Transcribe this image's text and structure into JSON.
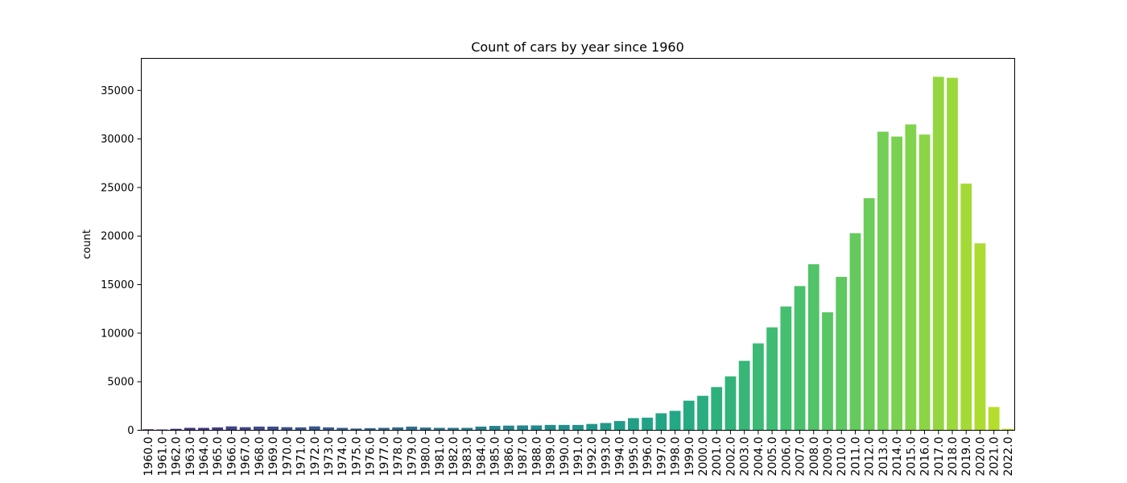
{
  "chart_data": {
    "type": "bar",
    "title": "Count of cars by year since 1960",
    "xlabel": "",
    "ylabel": "count",
    "ylim": [
      0,
      38300
    ],
    "yticks": [
      0,
      5000,
      10000,
      15000,
      20000,
      25000,
      30000,
      35000
    ],
    "grid": false,
    "legend": "none",
    "palette": "viridis",
    "categories": [
      "1960.0",
      "1961.0",
      "1962.0",
      "1963.0",
      "1964.0",
      "1965.0",
      "1966.0",
      "1967.0",
      "1968.0",
      "1969.0",
      "1970.0",
      "1971.0",
      "1972.0",
      "1973.0",
      "1974.0",
      "1975.0",
      "1976.0",
      "1977.0",
      "1978.0",
      "1979.0",
      "1980.0",
      "1981.0",
      "1982.0",
      "1983.0",
      "1984.0",
      "1985.0",
      "1986.0",
      "1987.0",
      "1988.0",
      "1989.0",
      "1990.0",
      "1991.0",
      "1992.0",
      "1993.0",
      "1994.0",
      "1995.0",
      "1996.0",
      "1997.0",
      "1998.0",
      "1999.0",
      "2000.0",
      "2001.0",
      "2002.0",
      "2003.0",
      "2004.0",
      "2005.0",
      "2006.0",
      "2007.0",
      "2008.0",
      "2009.0",
      "2010.0",
      "2011.0",
      "2012.0",
      "2013.0",
      "2014.0",
      "2015.0",
      "2016.0",
      "2017.0",
      "2018.0",
      "2019.0",
      "2020.0",
      "2021.0",
      "2022.0"
    ],
    "values": [
      100,
      80,
      150,
      250,
      250,
      300,
      400,
      320,
      380,
      380,
      320,
      300,
      400,
      300,
      250,
      180,
      220,
      250,
      300,
      380,
      280,
      250,
      250,
      250,
      380,
      450,
      480,
      500,
      500,
      550,
      550,
      550,
      650,
      750,
      950,
      1250,
      1300,
      1750,
      2000,
      3050,
      3550,
      4450,
      5550,
      7150,
      8950,
      10600,
      12750,
      14850,
      17100,
      12150,
      15800,
      20300,
      23900,
      30750,
      30250,
      31500,
      30450,
      36400,
      36300,
      25400,
      19250,
      2400,
      150
    ]
  }
}
